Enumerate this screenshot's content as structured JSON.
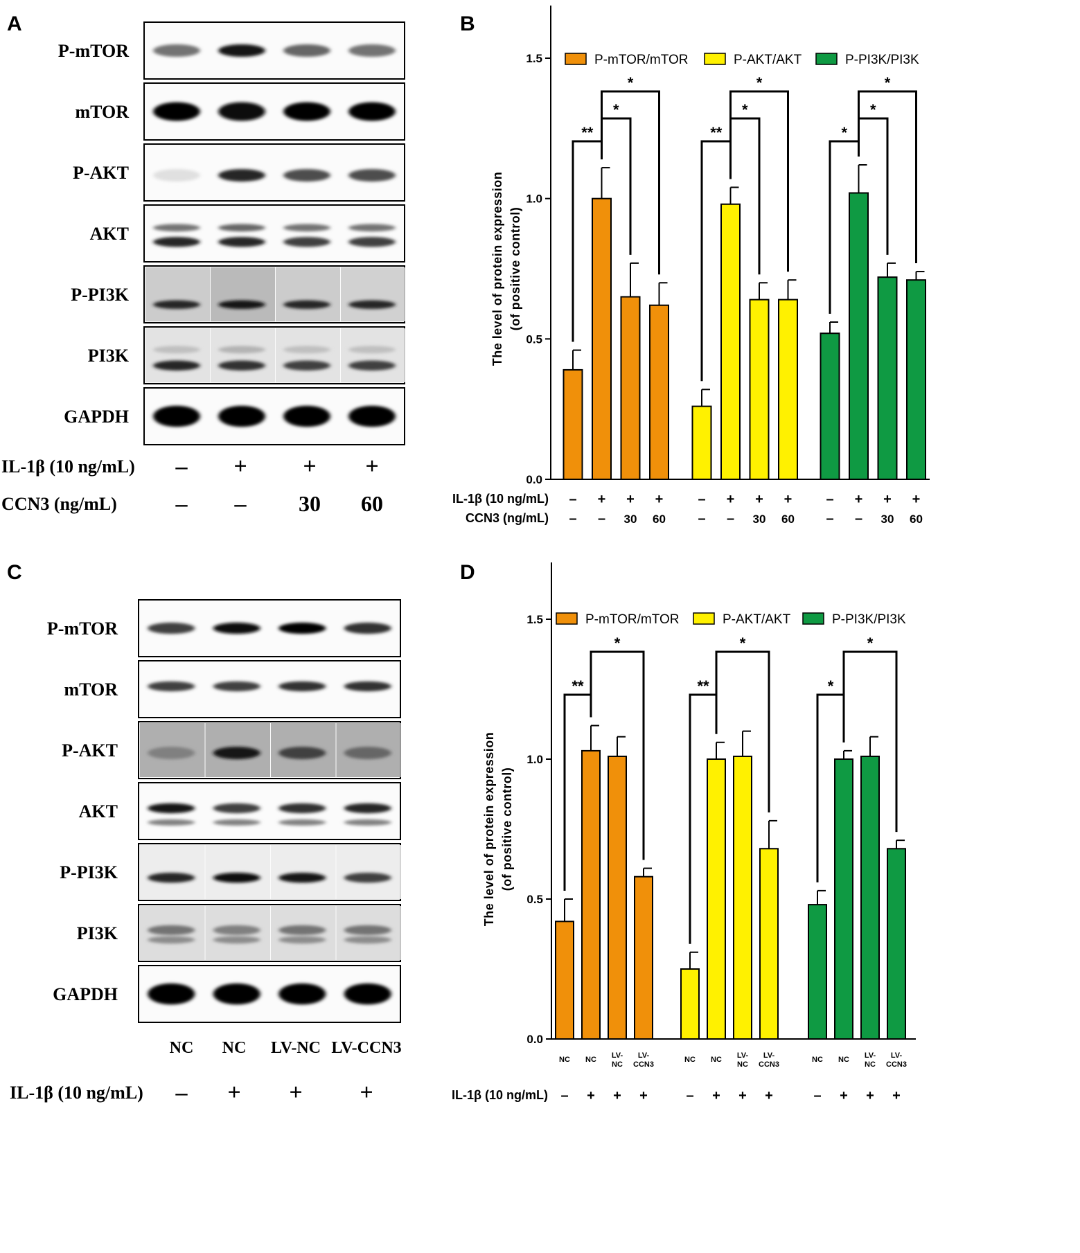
{
  "panels": {
    "A": {
      "letter": "A",
      "blots": [
        {
          "label": "P-mTOR",
          "bands": [
            {
              "offset": 0.5,
              "intensity": [
                0.55,
                0.9,
                0.6,
                0.55
              ],
              "thickness": 1.0
            }
          ],
          "bg": [
            0.05,
            0.05,
            0.05,
            0.05
          ]
        },
        {
          "label": "mTOR",
          "bands": [
            {
              "offset": 0.5,
              "intensity": [
                0.98,
                0.95,
                0.98,
                0.98
              ],
              "thickness": 1.5
            }
          ],
          "bg": [
            0.05,
            0.05,
            0.05,
            0.05
          ]
        },
        {
          "label": "P-AKT",
          "bands": [
            {
              "offset": 0.55,
              "intensity": [
                0.12,
                0.85,
                0.7,
                0.7
              ],
              "thickness": 1.0
            }
          ],
          "bg": [
            0.05,
            0.05,
            0.05,
            0.05
          ]
        },
        {
          "label": "AKT",
          "bands": [
            {
              "offset": 0.4,
              "intensity": [
                0.55,
                0.6,
                0.55,
                0.55
              ],
              "thickness": 0.6
            },
            {
              "offset": 0.65,
              "intensity": [
                0.85,
                0.85,
                0.75,
                0.75
              ],
              "thickness": 0.8
            }
          ],
          "bg": [
            0.05,
            0.05,
            0.05,
            0.05
          ]
        },
        {
          "label": "P-PI3K",
          "bands": [
            {
              "offset": 0.68,
              "intensity": [
                0.85,
                0.9,
                0.85,
                0.85
              ],
              "thickness": 0.7
            }
          ],
          "bg": [
            0.22,
            0.3,
            0.22,
            0.2
          ]
        },
        {
          "label": "PI3K",
          "bands": [
            {
              "offset": 0.4,
              "intensity": [
                0.25,
                0.3,
                0.25,
                0.25
              ],
              "thickness": 0.6
            },
            {
              "offset": 0.68,
              "intensity": [
                0.85,
                0.8,
                0.75,
                0.75
              ],
              "thickness": 0.8
            }
          ],
          "bg": [
            0.12,
            0.12,
            0.12,
            0.12
          ]
        },
        {
          "label": "GAPDH",
          "bands": [
            {
              "offset": 0.5,
              "intensity": [
                1.0,
                1.0,
                1.0,
                1.0
              ],
              "thickness": 1.7
            }
          ],
          "bg": [
            0.05,
            0.05,
            0.05,
            0.05
          ]
        }
      ],
      "conditions": [
        {
          "label": "IL-1β (10 ng/mL)",
          "values": [
            "–",
            "+",
            "+",
            "+"
          ]
        },
        {
          "label": "CCN3 (ng/mL)",
          "values": [
            "–",
            "–",
            "30",
            "60"
          ]
        }
      ]
    },
    "C": {
      "letter": "C",
      "blots": [
        {
          "label": "P-mTOR",
          "bands": [
            {
              "offset": 0.5,
              "intensity": [
                0.75,
                0.95,
                0.98,
                0.8
              ],
              "thickness": 0.9
            }
          ],
          "bg": [
            0.05,
            0.05,
            0.05,
            0.05
          ]
        },
        {
          "label": "mTOR",
          "bands": [
            {
              "offset": 0.45,
              "intensity": [
                0.75,
                0.75,
                0.8,
                0.8
              ],
              "thickness": 0.8
            }
          ],
          "bg": [
            0.05,
            0.05,
            0.05,
            0.05
          ]
        },
        {
          "label": "P-AKT",
          "bands": [
            {
              "offset": 0.55,
              "intensity": [
                0.5,
                0.9,
                0.75,
                0.6
              ],
              "thickness": 1.0
            }
          ],
          "bg": [
            0.35,
            0.35,
            0.35,
            0.35
          ]
        },
        {
          "label": "AKT",
          "bands": [
            {
              "offset": 0.45,
              "intensity": [
                0.9,
                0.75,
                0.8,
                0.85
              ],
              "thickness": 0.8
            },
            {
              "offset": 0.7,
              "intensity": [
                0.5,
                0.5,
                0.5,
                0.5
              ],
              "thickness": 0.5
            }
          ],
          "bg": [
            0.05,
            0.05,
            0.05,
            0.05
          ]
        },
        {
          "label": "P-PI3K",
          "bands": [
            {
              "offset": 0.6,
              "intensity": [
                0.85,
                0.95,
                0.9,
                0.75
              ],
              "thickness": 0.8
            }
          ],
          "bg": [
            0.08,
            0.08,
            0.08,
            0.08
          ]
        },
        {
          "label": "PI3K",
          "bands": [
            {
              "offset": 0.45,
              "intensity": [
                0.55,
                0.5,
                0.55,
                0.55
              ],
              "thickness": 0.8
            },
            {
              "offset": 0.62,
              "intensity": [
                0.45,
                0.45,
                0.45,
                0.45
              ],
              "thickness": 0.6
            }
          ],
          "bg": [
            0.15,
            0.15,
            0.15,
            0.15
          ]
        },
        {
          "label": "GAPDH",
          "bands": [
            {
              "offset": 0.5,
              "intensity": [
                1.0,
                1.0,
                1.0,
                1.0
              ],
              "thickness": 1.7
            }
          ],
          "bg": [
            0.05,
            0.05,
            0.05,
            0.05
          ]
        }
      ],
      "lane_labels": [
        "NC",
        "NC",
        "LV-NC",
        "LV-CCN3"
      ],
      "conditions": [
        {
          "label": "IL-1β (10 ng/mL)",
          "values": [
            "–",
            "+",
            "+",
            "+"
          ]
        }
      ]
    }
  },
  "chart_data": [
    {
      "panel": "B",
      "letter": "B",
      "type": "bar",
      "ylabel": "The level of protein expression\n(of positive control)",
      "ylim": [
        0,
        1.5
      ],
      "yticks": [
        "0.0",
        "0.5",
        "1.0",
        "1.5"
      ],
      "yticks_values": [
        0,
        0.5,
        1.0,
        1.5
      ],
      "legend_position": "top",
      "series": [
        {
          "name": "P-mTOR/mTOR",
          "color": "#F0900A",
          "values": [
            0.39,
            1.0,
            0.65,
            0.62
          ],
          "errors": [
            0.07,
            0.11,
            0.12,
            0.08
          ]
        },
        {
          "name": "P-AKT/AKT",
          "color": "#FFF100",
          "values": [
            0.26,
            0.98,
            0.64,
            0.64
          ],
          "errors": [
            0.06,
            0.06,
            0.06,
            0.07
          ]
        },
        {
          "name": "P-PI3K/PI3K",
          "color": "#0F9A43",
          "values": [
            0.52,
            1.02,
            0.72,
            0.71
          ],
          "errors": [
            0.04,
            0.1,
            0.05,
            0.03
          ]
        }
      ],
      "significance": [
        [
          {
            "from": 0,
            "to": 1,
            "label": "**"
          },
          {
            "from": 1,
            "to": 2,
            "label": "*"
          },
          {
            "from": 1,
            "to": 3,
            "label": "*"
          }
        ],
        [
          {
            "from": 0,
            "to": 1,
            "label": "**"
          },
          {
            "from": 1,
            "to": 2,
            "label": "*"
          },
          {
            "from": 1,
            "to": 3,
            "label": "*"
          }
        ],
        [
          {
            "from": 0,
            "to": 1,
            "label": "*"
          },
          {
            "from": 1,
            "to": 2,
            "label": "*"
          },
          {
            "from": 1,
            "to": 3,
            "label": "*"
          }
        ]
      ],
      "conditions": [
        {
          "label": "IL-1β (10 ng/mL)",
          "values": [
            "–",
            "+",
            "+",
            "+"
          ]
        },
        {
          "label": "CCN3 (ng/mL)",
          "values": [
            "–",
            "–",
            "30",
            "60"
          ]
        }
      ]
    },
    {
      "panel": "D",
      "letter": "D",
      "type": "bar",
      "ylabel": "The level of protein expression\n(of positive control)",
      "ylim": [
        0,
        1.5
      ],
      "yticks": [
        "0.0",
        "0.5",
        "1.0",
        "1.5"
      ],
      "yticks_values": [
        0,
        0.5,
        1.0,
        1.5
      ],
      "legend_position": "top",
      "categories": [
        "NC",
        "NC",
        "LV-NC",
        "LV-CCN3"
      ],
      "series": [
        {
          "name": "P-mTOR/mTOR",
          "color": "#F0900A",
          "values": [
            0.42,
            1.03,
            1.01,
            0.58
          ],
          "errors": [
            0.08,
            0.09,
            0.07,
            0.03
          ]
        },
        {
          "name": "P-AKT/AKT",
          "color": "#FFF100",
          "values": [
            0.25,
            1.0,
            1.01,
            0.68
          ],
          "errors": [
            0.06,
            0.06,
            0.09,
            0.1
          ]
        },
        {
          "name": "P-PI3K/PI3K",
          "color": "#0F9A43",
          "values": [
            0.48,
            1.0,
            1.01,
            0.68
          ],
          "errors": [
            0.05,
            0.03,
            0.07,
            0.03
          ]
        }
      ],
      "significance": [
        [
          {
            "from": 0,
            "to": 1,
            "label": "**"
          },
          {
            "from": 1,
            "to": 3,
            "label": "*"
          }
        ],
        [
          {
            "from": 0,
            "to": 1,
            "label": "**"
          },
          {
            "from": 1,
            "to": 3,
            "label": "*"
          }
        ],
        [
          {
            "from": 0,
            "to": 1,
            "label": "*"
          },
          {
            "from": 1,
            "to": 3,
            "label": "*"
          }
        ]
      ],
      "conditions": [
        {
          "label": "IL-1β (10 ng/mL)",
          "values": [
            "–",
            "+",
            "+",
            "+"
          ]
        }
      ]
    }
  ]
}
